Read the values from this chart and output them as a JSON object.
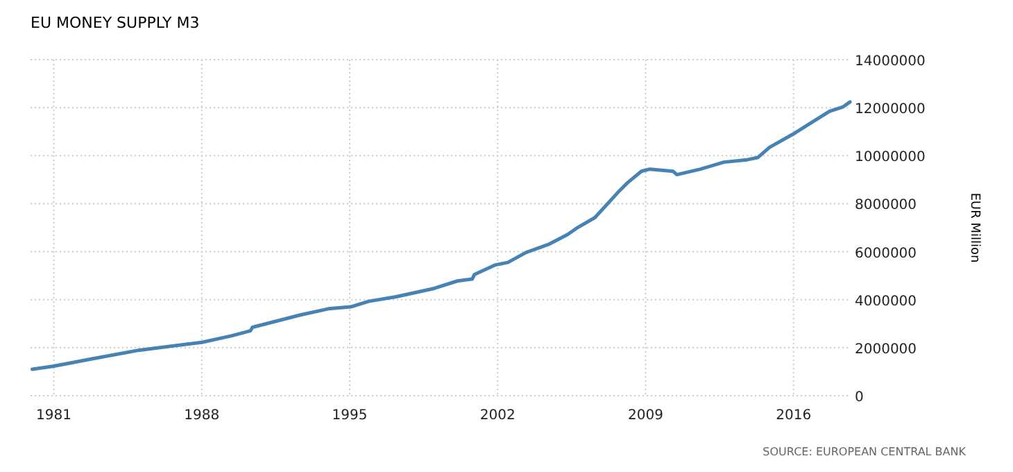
{
  "chart_data": {
    "type": "line",
    "title": "EU MONEY SUPPLY M3",
    "ylabel": "EUR Million",
    "annotations": [
      "SOURCE: EUROPEAN CENTRAL BANK"
    ],
    "x": [
      1979.98,
      1981,
      1982.85,
      1985,
      1988,
      1989.4,
      1990.3,
      1990.4,
      1992.7,
      1994,
      1995.05,
      1995.9,
      1997.2,
      1999,
      2000.1,
      2000.8,
      2000.9,
      2001.9,
      2002.48,
      2003.35,
      2004.4,
      2005.3,
      2005.74,
      2006.6,
      2007.7,
      2008.13,
      2008.8,
      2009.2,
      2010.3,
      2010.48,
      2011.6,
      2012.7,
      2013.8,
      2014.3,
      2014.87,
      2015.96,
      2016.83,
      2017.7,
      2018.35,
      2018.67
    ],
    "series": [
      {
        "color": "#4682b4",
        "values": [
          1100000,
          1230000,
          1540000,
          1890000,
          2220000,
          2490000,
          2700000,
          2850000,
          3370000,
          3620000,
          3700000,
          3930000,
          4120000,
          4470000,
          4780000,
          4860000,
          5050000,
          5450000,
          5550000,
          5970000,
          6300000,
          6710000,
          6980000,
          7420000,
          8480000,
          8860000,
          9350000,
          9440000,
          9350000,
          9210000,
          9440000,
          9730000,
          9830000,
          9920000,
          10350000,
          10890000,
          11370000,
          11850000,
          12040000,
          12240000
        ]
      }
    ],
    "xlim": [
      1979.9,
      2018.7
    ],
    "xticks": [
      1981,
      1988,
      1995,
      2002,
      2009,
      2016
    ],
    "ylim": [
      0,
      14000000
    ],
    "yticks": [
      0,
      2000000,
      4000000,
      6000000,
      8000000,
      10000000,
      12000000,
      14000000
    ],
    "grid": true,
    "marker": "none",
    "line_style": "solid"
  }
}
